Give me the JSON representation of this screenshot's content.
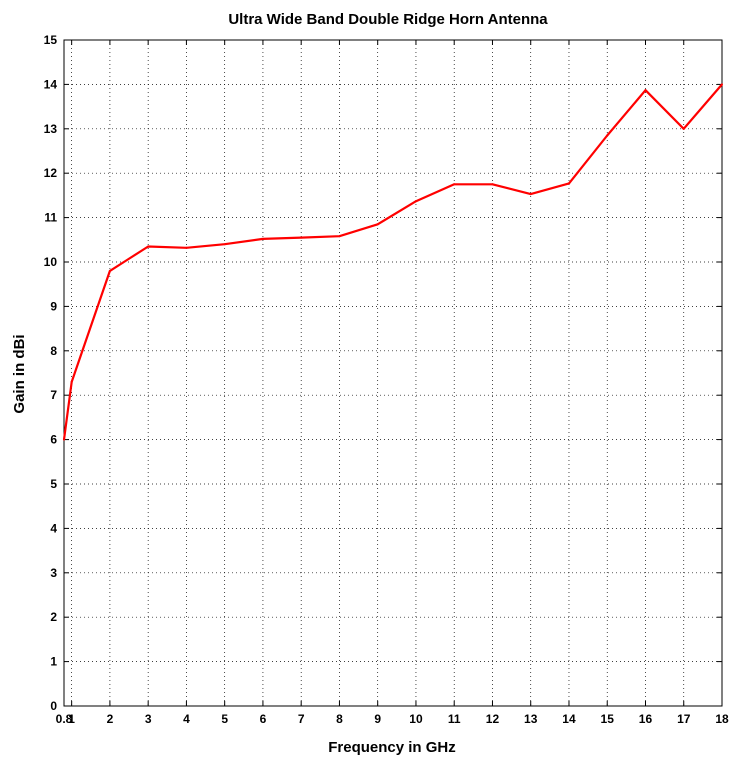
{
  "chart_data": {
    "type": "line",
    "title": "Ultra Wide Band Double Ridge Horn Antenna",
    "xlabel": "Frequency in GHz",
    "ylabel": "Gain in dBi",
    "xlim": [
      0.8,
      18
    ],
    "ylim": [
      0,
      15
    ],
    "x_ticks": [
      "0.8",
      "1",
      "2",
      "3",
      "4",
      "5",
      "6",
      "7",
      "8",
      "9",
      "10",
      "11",
      "12",
      "13",
      "14",
      "15",
      "16",
      "17",
      "18"
    ],
    "x_tick_values": [
      0.8,
      1,
      2,
      3,
      4,
      5,
      6,
      7,
      8,
      9,
      10,
      11,
      12,
      13,
      14,
      15,
      16,
      17,
      18
    ],
    "y_ticks": [
      0,
      1,
      2,
      3,
      4,
      5,
      6,
      7,
      8,
      9,
      10,
      11,
      12,
      13,
      14,
      15
    ],
    "grid": true,
    "line_color": "#ff0000",
    "series": [
      {
        "x": [
          0.8,
          1,
          2,
          3,
          4,
          5,
          6,
          7,
          8,
          9,
          10,
          11,
          12,
          13,
          14,
          15,
          16,
          17,
          18
        ],
        "y": [
          6.0,
          7.3,
          9.8,
          10.35,
          10.32,
          10.4,
          10.52,
          10.55,
          10.58,
          10.85,
          11.37,
          11.75,
          11.75,
          11.53,
          11.77,
          12.85,
          13.87,
          13.0,
          14.0
        ]
      }
    ]
  }
}
